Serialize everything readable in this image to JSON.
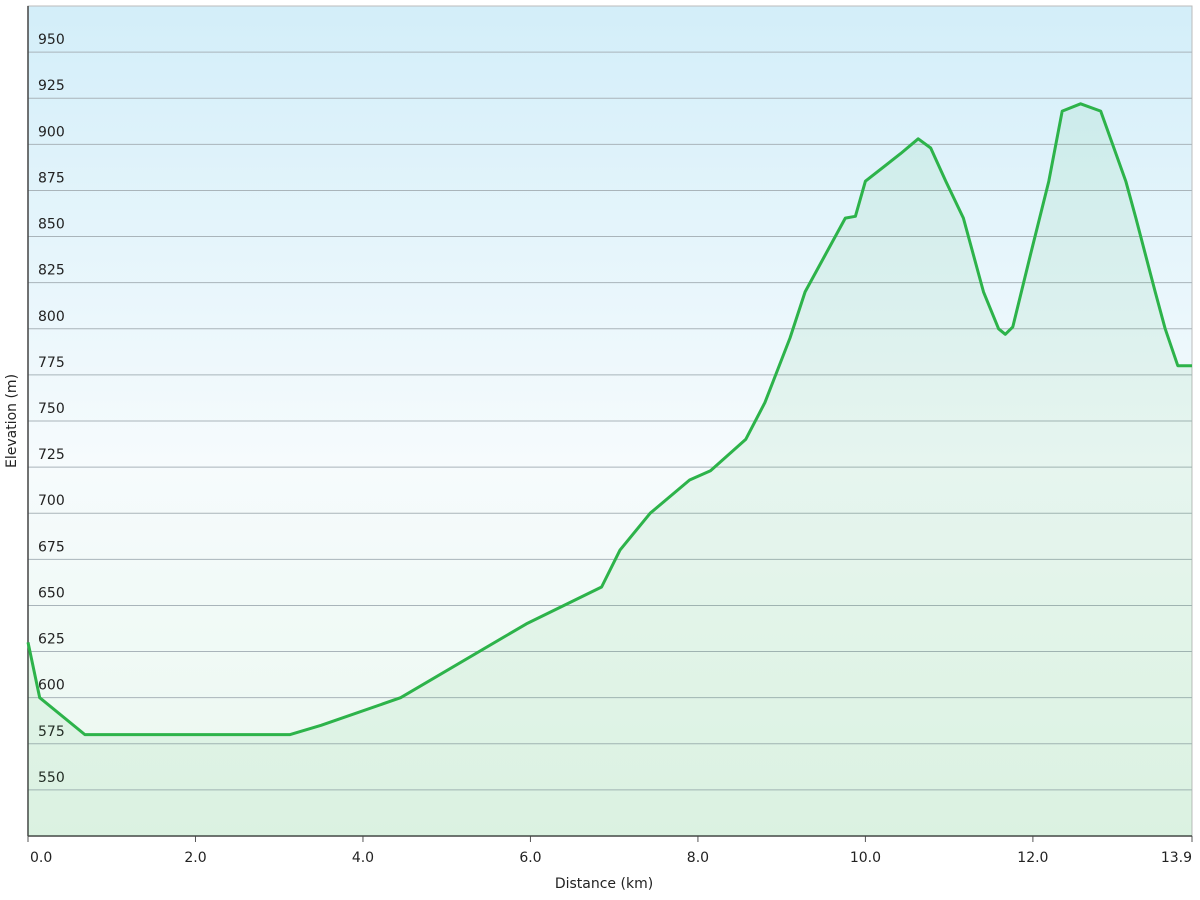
{
  "chart_data": {
    "type": "area",
    "x_label": "Distance  (km)",
    "y_label": "Elevation (m)",
    "x": [
      0,
      0.14,
      0.68,
      3.13,
      3.5,
      4.45,
      5.95,
      6.85,
      7.07,
      7.43,
      7.9,
      8.15,
      8.57,
      8.8,
      9.1,
      9.28,
      9.52,
      9.76,
      9.88,
      10.0,
      10.42,
      10.63,
      10.78,
      10.96,
      11.17,
      11.41,
      11.59,
      11.67,
      11.76,
      11.97,
      12.19,
      12.35,
      12.57,
      12.81,
      13.11,
      13.23,
      13.46,
      13.58,
      13.73,
      13.9
    ],
    "values": [
      630,
      600,
      580,
      580,
      585,
      600,
      640,
      660,
      680,
      700,
      718,
      723,
      740,
      760,
      795,
      820,
      840,
      860,
      861,
      880,
      895,
      903,
      898,
      880,
      860,
      820,
      800,
      797,
      801,
      840,
      880,
      918,
      922,
      918,
      880,
      860,
      820,
      800,
      780,
      780
    ],
    "color": "#2db34a",
    "xlim": [
      0,
      13.9
    ],
    "xticks": [
      {
        "value": 0,
        "label": "0.0"
      },
      {
        "value": 2,
        "label": "2.0"
      },
      {
        "value": 4,
        "label": "4.0"
      },
      {
        "value": 6,
        "label": "6.0"
      },
      {
        "value": 8,
        "label": "8.0"
      },
      {
        "value": 10,
        "label": "10.0"
      },
      {
        "value": 12,
        "label": "12.0"
      },
      13.9
    ],
    "ylim": [
      525,
      975
    ],
    "yticks": [
      550,
      575,
      600,
      625,
      650,
      675,
      700,
      725,
      750,
      775,
      800,
      825,
      850,
      875,
      900,
      925,
      950
    ],
    "grid": true
  }
}
